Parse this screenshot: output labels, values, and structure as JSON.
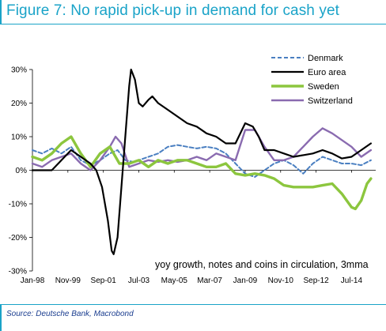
{
  "title": "Figure 7: No rapid pick-up in demand for cash yet",
  "source": "Source: Deutsche Bank, Macrobond",
  "chart_data": {
    "type": "line",
    "annotation": "yoy growth, notes and coins in circulation, 3mma",
    "ylim": [
      -30,
      30
    ],
    "xlim": [
      1998.0,
      2015.75
    ],
    "y_ticks": [
      30,
      20,
      10,
      0,
      -10,
      -20,
      -30
    ],
    "y_tick_labels": [
      "30%",
      "20%",
      "10%",
      "0%",
      "-10%",
      "-20%",
      "-30%"
    ],
    "x_ticks": [
      1998.0,
      1999.833,
      2001.667,
      2003.5,
      2005.333,
      2007.167,
      2009.0,
      2010.833,
      2012.667,
      2014.5
    ],
    "x_tick_labels": [
      "Jan-98",
      "Nov-99",
      "Sep-01",
      "Jul-03",
      "May-05",
      "Mar-07",
      "Jan-09",
      "Nov-10",
      "Sep-12",
      "Jul-14"
    ],
    "grid": false,
    "legend_position": "top-right",
    "series": [
      {
        "name": "Denmark",
        "color": "#4a7fc1",
        "dash": "dashed",
        "points": [
          [
            1998.0,
            6
          ],
          [
            1998.5,
            5
          ],
          [
            1999.0,
            6.5
          ],
          [
            1999.5,
            5
          ],
          [
            2000.0,
            7
          ],
          [
            2000.5,
            3
          ],
          [
            2001.0,
            1.5
          ],
          [
            2001.5,
            3
          ],
          [
            2002.0,
            5
          ],
          [
            2002.4,
            6
          ],
          [
            2002.8,
            3
          ],
          [
            2003.2,
            2.5
          ],
          [
            2003.5,
            3
          ],
          [
            2004.0,
            4
          ],
          [
            2004.5,
            5
          ],
          [
            2005.0,
            7
          ],
          [
            2005.5,
            7.5
          ],
          [
            2006.0,
            7
          ],
          [
            2006.5,
            6.5
          ],
          [
            2007.0,
            7
          ],
          [
            2007.5,
            6.5
          ],
          [
            2008.0,
            5
          ],
          [
            2008.5,
            2
          ],
          [
            2009.0,
            -1
          ],
          [
            2009.5,
            -2
          ],
          [
            2010.0,
            0
          ],
          [
            2010.5,
            2
          ],
          [
            2011.0,
            3
          ],
          [
            2011.5,
            1.5
          ],
          [
            2012.0,
            -1
          ],
          [
            2012.5,
            2
          ],
          [
            2013.0,
            4
          ],
          [
            2013.5,
            3
          ],
          [
            2014.0,
            2
          ],
          [
            2014.5,
            2
          ],
          [
            2015.0,
            1.5
          ],
          [
            2015.5,
            3
          ]
        ]
      },
      {
        "name": "Euro area",
        "color": "#000000",
        "dash": "solid",
        "points": [
          [
            1998.0,
            0
          ],
          [
            1998.5,
            0
          ],
          [
            1999.0,
            0
          ],
          [
            1999.5,
            3
          ],
          [
            2000.0,
            6
          ],
          [
            2000.5,
            4
          ],
          [
            2001.0,
            2
          ],
          [
            2001.3,
            0
          ],
          [
            2001.6,
            -5
          ],
          [
            2001.9,
            -15
          ],
          [
            2002.1,
            -24
          ],
          [
            2002.2,
            -25
          ],
          [
            2002.4,
            -20
          ],
          [
            2002.6,
            -5
          ],
          [
            2002.8,
            10
          ],
          [
            2003.0,
            25
          ],
          [
            2003.1,
            30
          ],
          [
            2003.3,
            27
          ],
          [
            2003.5,
            20
          ],
          [
            2003.7,
            19
          ],
          [
            2004.0,
            21
          ],
          [
            2004.2,
            22
          ],
          [
            2004.5,
            20
          ],
          [
            2005.0,
            18
          ],
          [
            2005.5,
            16
          ],
          [
            2006.0,
            14
          ],
          [
            2006.5,
            13
          ],
          [
            2007.0,
            11
          ],
          [
            2007.5,
            10
          ],
          [
            2008.0,
            8
          ],
          [
            2008.5,
            8
          ],
          [
            2009.0,
            14
          ],
          [
            2009.4,
            13
          ],
          [
            2009.7,
            10
          ],
          [
            2010.0,
            6
          ],
          [
            2010.5,
            6
          ],
          [
            2011.0,
            5
          ],
          [
            2011.5,
            4
          ],
          [
            2012.0,
            4.5
          ],
          [
            2012.5,
            5
          ],
          [
            2013.0,
            6
          ],
          [
            2013.5,
            5
          ],
          [
            2014.0,
            3.5
          ],
          [
            2014.5,
            4
          ],
          [
            2015.0,
            6
          ],
          [
            2015.5,
            8
          ]
        ]
      },
      {
        "name": "Sweden",
        "color": "#8cc63e",
        "dash": "solid",
        "points": [
          [
            1998.0,
            4
          ],
          [
            1998.5,
            3
          ],
          [
            1999.0,
            5
          ],
          [
            1999.5,
            8
          ],
          [
            2000.0,
            10
          ],
          [
            2000.5,
            5
          ],
          [
            2001.0,
            1
          ],
          [
            2001.5,
            5
          ],
          [
            2002.0,
            7
          ],
          [
            2002.5,
            2
          ],
          [
            2003.0,
            2
          ],
          [
            2003.5,
            3
          ],
          [
            2004.0,
            1
          ],
          [
            2004.5,
            3
          ],
          [
            2005.0,
            2
          ],
          [
            2005.5,
            3
          ],
          [
            2006.0,
            3
          ],
          [
            2006.5,
            2
          ],
          [
            2007.0,
            1
          ],
          [
            2007.5,
            1
          ],
          [
            2008.0,
            2
          ],
          [
            2008.5,
            -1
          ],
          [
            2009.0,
            -1.5
          ],
          [
            2009.5,
            -1
          ],
          [
            2010.0,
            -1.5
          ],
          [
            2010.5,
            -2.5
          ],
          [
            2011.0,
            -4.5
          ],
          [
            2011.5,
            -5
          ],
          [
            2012.0,
            -5
          ],
          [
            2012.5,
            -5
          ],
          [
            2013.0,
            -4.5
          ],
          [
            2013.5,
            -4
          ],
          [
            2014.0,
            -7
          ],
          [
            2014.5,
            -11
          ],
          [
            2014.7,
            -11.5
          ],
          [
            2015.0,
            -9
          ],
          [
            2015.3,
            -4
          ],
          [
            2015.5,
            -2.5
          ]
        ]
      },
      {
        "name": "Switzerland",
        "color": "#8a6bb0",
        "dash": "solid",
        "points": [
          [
            1998.0,
            2
          ],
          [
            1998.5,
            1
          ],
          [
            1999.0,
            3
          ],
          [
            1999.5,
            4
          ],
          [
            2000.0,
            5
          ],
          [
            2000.5,
            2
          ],
          [
            2001.0,
            0
          ],
          [
            2001.5,
            3
          ],
          [
            2002.0,
            7
          ],
          [
            2002.3,
            10
          ],
          [
            2002.6,
            8
          ],
          [
            2003.0,
            1
          ],
          [
            2003.5,
            2
          ],
          [
            2004.0,
            3
          ],
          [
            2004.5,
            2.5
          ],
          [
            2005.0,
            3
          ],
          [
            2005.5,
            2.5
          ],
          [
            2006.0,
            3
          ],
          [
            2006.5,
            4
          ],
          [
            2007.0,
            3
          ],
          [
            2007.5,
            5
          ],
          [
            2008.0,
            4
          ],
          [
            2008.5,
            3
          ],
          [
            2009.0,
            12
          ],
          [
            2009.5,
            12
          ],
          [
            2010.0,
            7
          ],
          [
            2010.5,
            3
          ],
          [
            2011.0,
            3
          ],
          [
            2011.5,
            4
          ],
          [
            2012.0,
            7
          ],
          [
            2012.5,
            10
          ],
          [
            2013.0,
            12.5
          ],
          [
            2013.5,
            11
          ],
          [
            2014.0,
            9
          ],
          [
            2014.5,
            7
          ],
          [
            2015.0,
            4
          ],
          [
            2015.5,
            6
          ]
        ]
      }
    ]
  }
}
